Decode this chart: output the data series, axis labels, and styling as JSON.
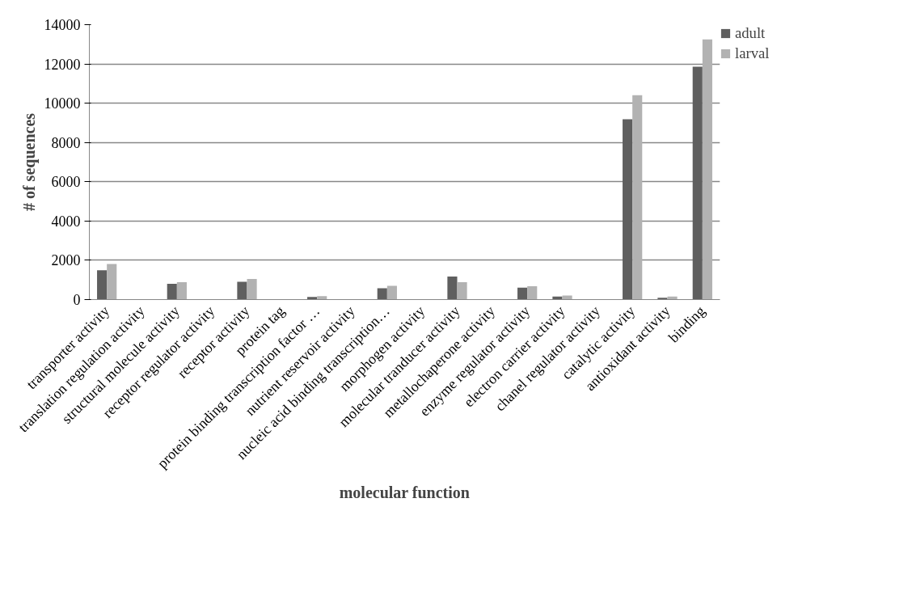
{
  "chart_data": {
    "type": "bar",
    "xlabel": "molecular function",
    "ylabel": "# of sequences",
    "categories": [
      "transporter activity",
      "translation regulation activity",
      "structural molecule activity",
      "receptor regulator activity",
      "receptor activity",
      "protein tag",
      "protein binding transcription factor …",
      "nutrient reservoir activity",
      "nucleic acid binding transcription…",
      "morphogen activity",
      "molecular tranducer activity",
      "metallochaperone activity",
      "enzyme regulator activity",
      "electron carrier activity",
      "chanel regulator activity",
      "catalytic activity",
      "antioxidant activity",
      "binding"
    ],
    "series": [
      {
        "name": "adult",
        "color": "#5f5f5f",
        "values": [
          1490,
          0,
          800,
          0,
          910,
          0,
          130,
          0,
          580,
          0,
          1170,
          0,
          610,
          150,
          0,
          9180,
          90,
          11860
        ]
      },
      {
        "name": "larval",
        "color": "#b2b2b2",
        "values": [
          1810,
          0,
          890,
          0,
          1050,
          0,
          180,
          0,
          700,
          0,
          890,
          0,
          680,
          210,
          0,
          10410,
          150,
          13250
        ]
      }
    ],
    "ylim": [
      0,
      14000
    ],
    "yticks": [
      0,
      2000,
      4000,
      6000,
      8000,
      10000,
      12000,
      14000
    ],
    "grid": "y",
    "legend": "right"
  }
}
